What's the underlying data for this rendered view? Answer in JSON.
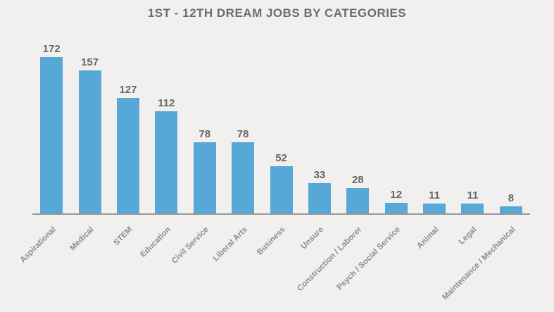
{
  "title": "1ST - 12TH DREAM JOBS BY CATEGORIES",
  "colors": {
    "background": "#f1f0ef",
    "bar": "#56a8d6",
    "title_text": "#6e6c6b",
    "value_text": "#676767",
    "label_text": "#8f8d8c",
    "axis_line": "#9b9997"
  },
  "chart_data": {
    "type": "bar",
    "title": "1ST - 12TH DREAM JOBS BY CATEGORIES",
    "categories": [
      "Aspirational",
      "Medical",
      "STEM",
      "Education",
      "Civil Service",
      "Liberal Arts",
      "Business",
      "Unsure",
      "Construction / Laborer",
      "Psych / Social Service",
      "Animal",
      "Legal",
      "Maintenance / Mechanical"
    ],
    "values": [
      172,
      157,
      127,
      112,
      78,
      78,
      52,
      33,
      28,
      12,
      11,
      11,
      8
    ],
    "xlabel": "",
    "ylabel": "",
    "ylim": [
      0,
      180
    ],
    "grid": false,
    "legend": false,
    "data_labels": true,
    "category_label_rotation_deg": 45,
    "bar_color": "#56a8d6"
  }
}
